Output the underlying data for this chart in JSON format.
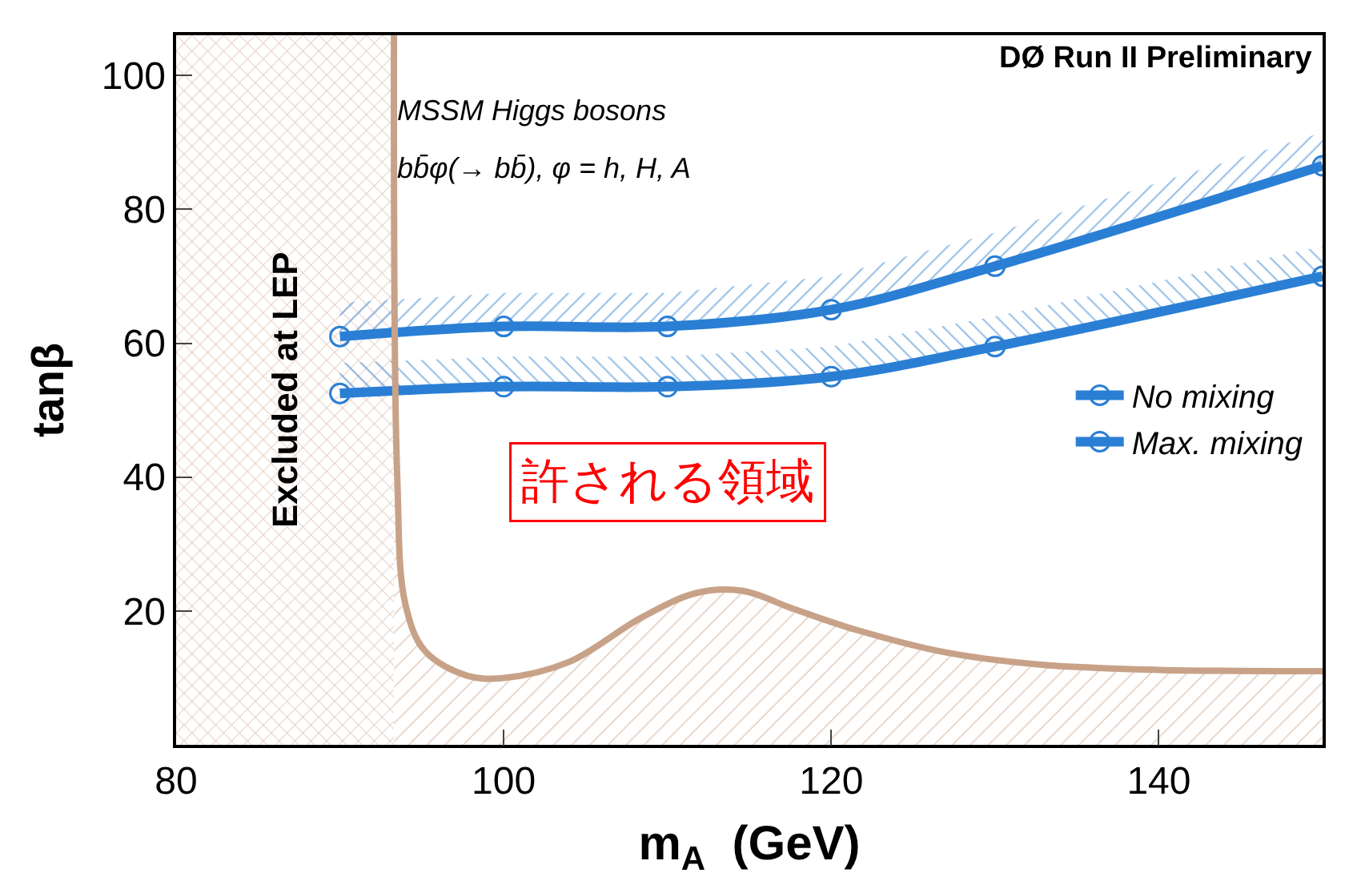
{
  "chart_data": {
    "type": "line",
    "xlabel": "m$_{A}$  (GeV)",
    "ylabel": "tanβ",
    "x": [
      90,
      100,
      110,
      120,
      130,
      150
    ],
    "series": [
      {
        "name": "No mixing",
        "color": "#2a7fd4",
        "values": [
          61,
          62.5,
          62.5,
          65,
          71.5,
          86.5
        ],
        "lower": [
          61,
          62.5,
          62.5,
          65,
          71.5,
          86.5
        ],
        "upper": [
          66,
          67.5,
          67.5,
          70,
          76.5,
          91.5
        ]
      },
      {
        "name": "Max. mixing",
        "color": "#2a7fd4",
        "values": [
          52.5,
          53.5,
          53.5,
          55,
          59.5,
          70
        ],
        "lower": [
          52.5,
          53.5,
          53.5,
          55,
          59.5,
          70
        ],
        "upper": [
          57,
          58,
          58,
          59.5,
          64,
          74.5
        ]
      },
      {
        "type": "area",
        "marker": "none",
        "color": "#c8a288",
        "x": [
          93.3,
          93.5,
          94,
          95.2,
          97.8,
          100,
          104,
          108.4,
          111.8,
          114.6,
          117.7,
          121.5,
          127,
          132.7,
          140,
          150
        ],
        "values": [
          106,
          40,
          21,
          14,
          10.3,
          10,
          12.4,
          19,
          22.7,
          23,
          20.3,
          17.2,
          13.8,
          12,
          11.2,
          11
        ]
      }
    ],
    "bands": [
      {
        "axis": "x",
        "from": 80,
        "to": 93.3,
        "label": "Excluded at LEP",
        "color": "#c8a288"
      }
    ],
    "annotations": [
      "DØ Run II Preliminary",
      "MSSM Higgs bosons",
      "bb̄φ(→ bb̄), φ = h, H, A",
      "許される領域"
    ],
    "xlim": [
      80,
      150
    ],
    "ylim": [
      0,
      106
    ],
    "xticks": [
      80,
      100,
      120,
      140
    ],
    "yticks": [
      20,
      40,
      60,
      80,
      100
    ],
    "marker": "circle",
    "line_style": "solid",
    "legend": "right"
  }
}
